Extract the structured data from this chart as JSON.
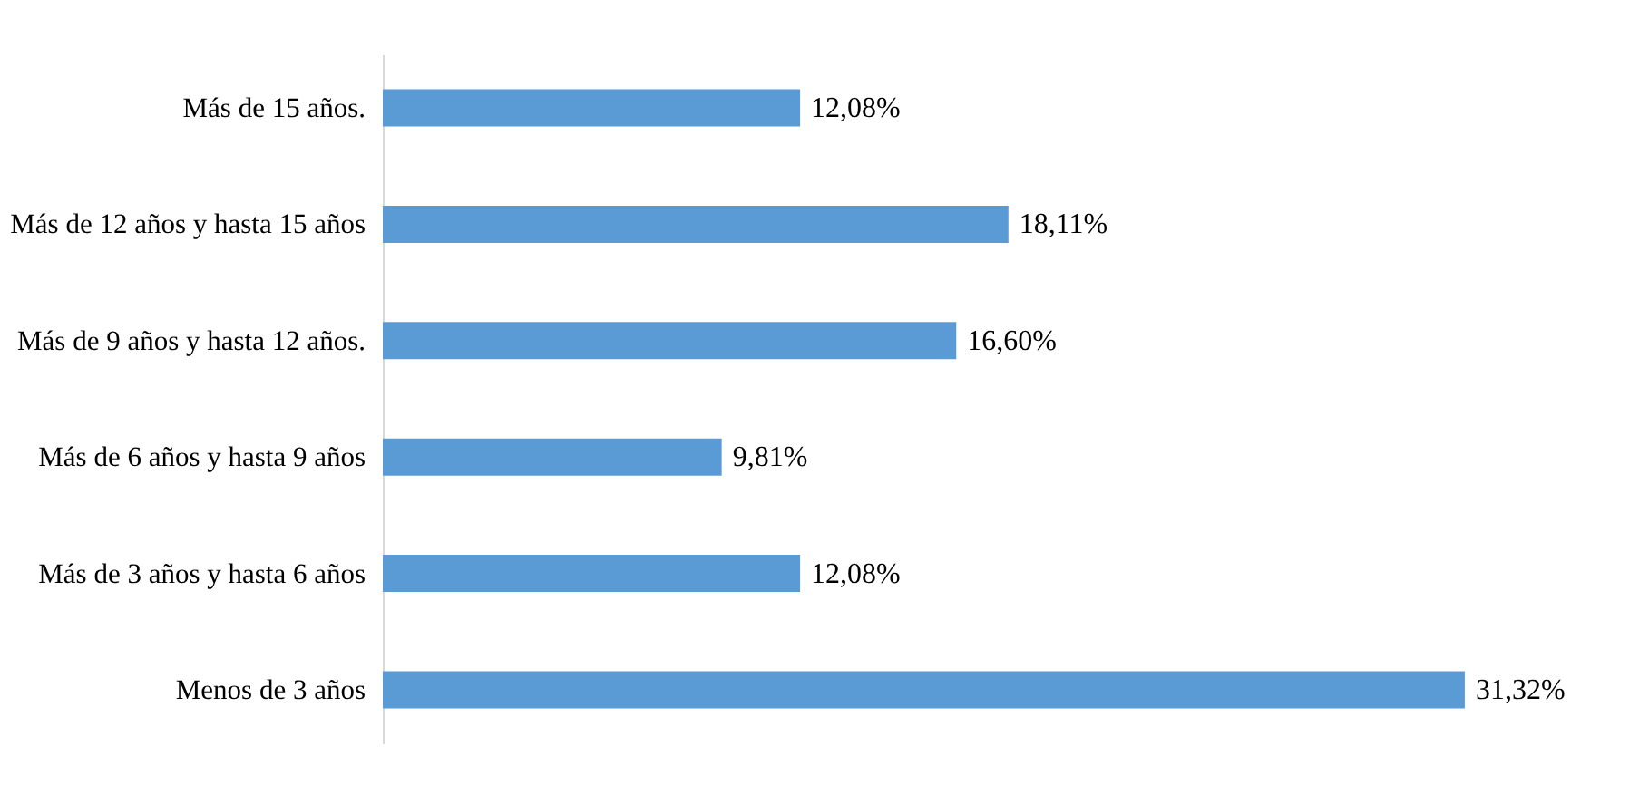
{
  "chart_data": {
    "type": "bar",
    "orientation": "horizontal",
    "categories": [
      "Más de 15 años.",
      "Más de 12 años y hasta 15 años",
      "Más de 9 años y hasta 12 años.",
      "Más de 6 años y hasta 9 años",
      "Más de 3 años y hasta 6 años",
      "Menos de 3 años"
    ],
    "values": [
      12.08,
      18.11,
      16.6,
      9.81,
      12.08,
      31.32
    ],
    "value_labels": [
      "12,08%",
      "18,11%",
      "16,60%",
      "9,81%",
      "12,08%",
      "31,32%"
    ],
    "color": "#5b9bd5",
    "tick_labels": "y"
  }
}
